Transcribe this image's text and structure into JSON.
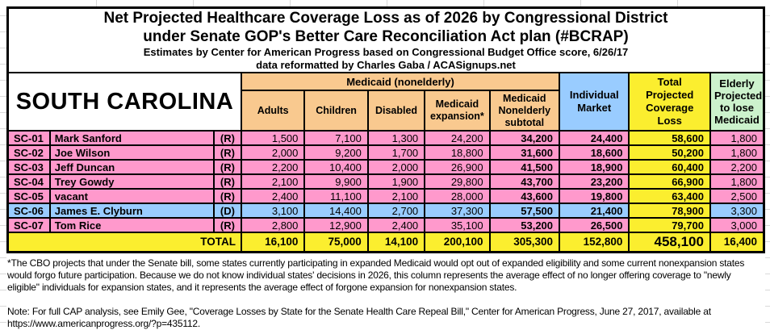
{
  "colors": {
    "pink": "#FF99CC",
    "blue": "#99CCFF",
    "tan": "#F9C98F",
    "yellow": "#FBEE2F",
    "green": "#CCF2CC",
    "border": "#000000"
  },
  "title": {
    "line1": "Net Projected Healthcare Coverage Loss as of 2026 by Congressional District",
    "line2": "under Senate GOP's Better Care Reconciliation Act plan (#BCRAP)",
    "line3": "Estimates by Center for American Progress based on Congressional Budget Office score, 6/26/17",
    "line4": "data reformatted by Charles Gaba / ACASignups.net"
  },
  "state_label": "SOUTH CAROLINA",
  "header": {
    "medicaid_group": "Medicaid (nonelderly)",
    "subcolumns": [
      "Adults",
      "Children",
      "Disabled",
      "Medicaid expansion*",
      "Medicaid Nonelderly subtotal"
    ],
    "individual_market": "Individual Market",
    "total": "Total Projected Coverage Loss",
    "elderly": "Elderly Projected to lose Medicaid"
  },
  "rows": [
    {
      "district": "SC-01",
      "rep": "Mark Sanford",
      "party": "(R)",
      "values": [
        "1,500",
        "7,100",
        "1,300",
        "24,200",
        "34,200",
        "24,400",
        "58,600",
        "1,800"
      ]
    },
    {
      "district": "SC-02",
      "rep": "Joe Wilson",
      "party": "(R)",
      "values": [
        "2,000",
        "9,200",
        "1,700",
        "18,800",
        "31,600",
        "18,600",
        "50,200",
        "1,800"
      ]
    },
    {
      "district": "SC-03",
      "rep": "Jeff Duncan",
      "party": "(R)",
      "values": [
        "2,200",
        "10,400",
        "2,000",
        "26,900",
        "41,500",
        "18,900",
        "60,400",
        "2,200"
      ]
    },
    {
      "district": "SC-04",
      "rep": "Trey Gowdy",
      "party": "(R)",
      "values": [
        "2,100",
        "9,900",
        "1,900",
        "29,800",
        "43,700",
        "23,200",
        "66,900",
        "1,800"
      ]
    },
    {
      "district": "SC-05",
      "rep": "vacant",
      "party": "(R)",
      "values": [
        "2,400",
        "11,100",
        "2,100",
        "28,000",
        "43,600",
        "19,800",
        "63,400",
        "2,500"
      ]
    },
    {
      "district": "SC-06",
      "rep": "James E. Clyburn",
      "party": "(D)",
      "values": [
        "3,100",
        "14,400",
        "2,700",
        "37,300",
        "57,500",
        "21,400",
        "78,900",
        "3,300"
      ]
    },
    {
      "district": "SC-07",
      "rep": "Tom Rice",
      "party": "(R)",
      "values": [
        "2,800",
        "12,900",
        "2,400",
        "35,100",
        "53,200",
        "26,500",
        "79,700",
        "3,000"
      ]
    }
  ],
  "total_row": {
    "label": "TOTAL",
    "values": [
      "16,100",
      "75,000",
      "14,100",
      "200,100",
      "305,300",
      "152,800",
      "458,100",
      "16,400"
    ]
  },
  "footnotes": {
    "cbo_note": "*The CBO projects that under the Senate bill, some states currently participating in expanded Medicaid would opt out of expanded eligibility and some current nonexpansion states would forgo future participation. Because we do not know individual states' decisions in 2026, this column represents the average effect of no longer offering coverage to \"newly eligible\" individuals for expansion states, and it represents the average effect of forgone expansion for nonexpansion states.",
    "cap_note": "Note: For full CAP analysis, see Emily Gee, \"Coverage Losses by State for the Senate Health Care Repeal Bill,\" Center for American Progress, June 27, 2017, available at https://www.americanprogress.org/?p=435112."
  },
  "chart_data": {
    "type": "table",
    "title": "Net Projected Healthcare Coverage Loss as of 2026 by Congressional District under Senate GOP's Better Care Reconciliation Act plan (#BCRAP)",
    "subtitle": "Estimates by Center for American Progress based on Congressional Budget Office score, 6/26/17; data reformatted by Charles Gaba / ACASignups.net",
    "state": "South Carolina",
    "columns": [
      "District",
      "Representative",
      "Party",
      "Medicaid Adults",
      "Medicaid Children",
      "Medicaid Disabled",
      "Medicaid expansion*",
      "Medicaid Nonelderly subtotal",
      "Individual Market",
      "Total Projected Coverage Loss",
      "Elderly Projected to lose Medicaid"
    ],
    "rows": [
      [
        "SC-01",
        "Mark Sanford",
        "R",
        1500,
        7100,
        1300,
        24200,
        34200,
        24400,
        58600,
        1800
      ],
      [
        "SC-02",
        "Joe Wilson",
        "R",
        2000,
        9200,
        1700,
        18800,
        31600,
        18600,
        50200,
        1800
      ],
      [
        "SC-03",
        "Jeff Duncan",
        "R",
        2200,
        10400,
        2000,
        26900,
        41500,
        18900,
        60400,
        2200
      ],
      [
        "SC-04",
        "Trey Gowdy",
        "R",
        2100,
        9900,
        1900,
        29800,
        43700,
        23200,
        66900,
        1800
      ],
      [
        "SC-05",
        "vacant",
        "R",
        2400,
        11100,
        2100,
        28000,
        43600,
        19800,
        63400,
        2500
      ],
      [
        "SC-06",
        "James E. Clyburn",
        "D",
        3100,
        14400,
        2700,
        37300,
        57500,
        21400,
        78900,
        3300
      ],
      [
        "SC-07",
        "Tom Rice",
        "R",
        2800,
        12900,
        2400,
        35100,
        53200,
        26500,
        79700,
        3000
      ]
    ],
    "totals": [
      "",
      "TOTAL",
      "",
      16100,
      75000,
      14100,
      200100,
      305300,
      152800,
      458100,
      16400
    ]
  }
}
